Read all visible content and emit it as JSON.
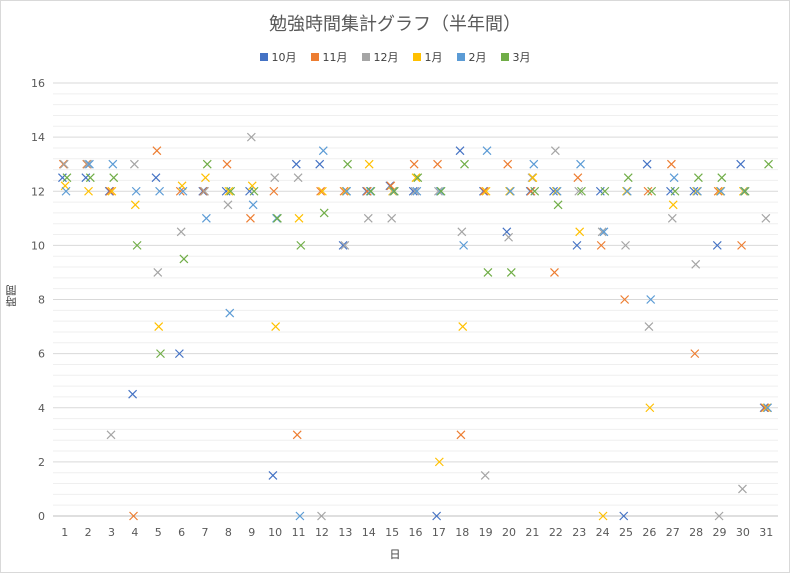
{
  "chart_data": {
    "type": "scatter",
    "title": "勉強時間集計グラフ（半年間）",
    "xlabel": "日",
    "ylabel": "時間",
    "ylim": [
      0,
      16
    ],
    "yticks": [
      0,
      2,
      4,
      6,
      8,
      10,
      12,
      14,
      16
    ],
    "xticks": [
      1,
      2,
      3,
      4,
      5,
      6,
      7,
      8,
      9,
      10,
      11,
      12,
      13,
      14,
      15,
      16,
      17,
      18,
      19,
      20,
      21,
      22,
      23,
      24,
      25,
      26,
      27,
      28,
      29,
      30,
      31
    ],
    "grid": true,
    "legend_position": "top",
    "marker": "x",
    "series": [
      {
        "name": "10月",
        "color": "#4472c4",
        "values": [
          12.5,
          12.5,
          12,
          4.5,
          12.5,
          6,
          12,
          12,
          12,
          1.5,
          13,
          13,
          10,
          12,
          12.2,
          12,
          0,
          13.5,
          12,
          10.5,
          12,
          12,
          10,
          12,
          0,
          13,
          12,
          12,
          10,
          13,
          4
        ]
      },
      {
        "name": "11月",
        "color": "#ed7d31",
        "values": [
          13,
          13,
          12,
          0,
          13.5,
          12,
          12,
          13,
          11,
          12,
          3,
          12,
          12,
          12,
          12.2,
          13,
          13,
          3,
          12,
          13,
          12,
          9,
          12.5,
          10,
          8,
          12,
          13,
          6,
          12,
          10,
          4
        ]
      },
      {
        "name": "12月",
        "color": "#a5a5a5",
        "values": [
          13,
          13,
          3,
          13,
          9,
          10.5,
          12,
          11.5,
          14,
          12.5,
          12.5,
          0,
          10,
          11,
          11,
          12,
          12,
          10.5,
          1.5,
          10.3,
          12.5,
          13.5,
          12,
          10.5,
          10,
          7,
          11,
          9.3,
          0,
          1,
          11
        ]
      },
      {
        "name": "1月",
        "color": "#ffc000",
        "values": [
          12.2,
          12,
          12,
          11.5,
          7,
          12.2,
          12.5,
          12,
          12.2,
          7,
          11,
          12,
          12,
          13,
          12,
          12.5,
          2,
          7,
          12,
          12,
          12.5,
          12,
          10.5,
          0,
          12,
          4,
          11.5,
          12,
          12,
          12,
          4
        ]
      },
      {
        "name": "2月",
        "color": "#5b9bd5",
        "values": [
          12,
          13,
          13,
          12,
          12,
          12,
          11,
          7.5,
          11.5,
          11,
          0,
          13.5,
          12,
          12,
          12,
          12,
          12,
          10,
          13.5,
          12,
          13,
          12,
          13,
          10.5,
          12,
          8,
          12.5,
          12,
          12,
          12,
          4
        ]
      },
      {
        "name": "3月",
        "color": "#70ad47",
        "values": [
          12.5,
          12.5,
          12.5,
          10,
          6,
          9.5,
          13,
          12,
          12,
          11,
          10,
          11.2,
          13,
          12,
          12,
          12.5,
          12,
          13,
          9,
          9,
          12,
          11.5,
          12,
          12,
          12.5,
          12,
          12,
          12.5,
          12.5,
          12,
          13
        ]
      }
    ]
  }
}
